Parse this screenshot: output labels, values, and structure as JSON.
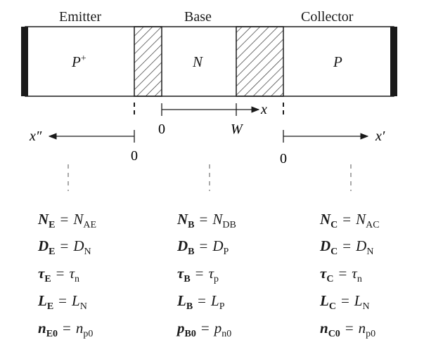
{
  "regions": {
    "emitter": {
      "title": "Emitter",
      "doping": "P",
      "doping_sup": "+"
    },
    "base": {
      "title": "Base",
      "doping": "N"
    },
    "collector": {
      "title": "Collector",
      "doping": "P"
    }
  },
  "axes": {
    "x": {
      "label": "x",
      "zero": "0",
      "end": "W"
    },
    "x_double_prime": {
      "label": "x″",
      "zero": "0"
    },
    "x_prime": {
      "label": "x′",
      "zero": "0"
    }
  },
  "equations": {
    "emitter": [
      {
        "sym": "N",
        "sub": "E",
        "val": "N",
        "vsub": "AE"
      },
      {
        "sym": "D",
        "sub": "E",
        "val": "D",
        "vsub": "N"
      },
      {
        "sym": "τ",
        "sub": "E",
        "val": "τ",
        "vsub": "n"
      },
      {
        "sym": "L",
        "sub": "E",
        "val": "L",
        "vsub": "N"
      },
      {
        "sym": "n",
        "sub": "E0",
        "val": "n",
        "vsub": "p0"
      }
    ],
    "base": [
      {
        "sym": "N",
        "sub": "B",
        "val": "N",
        "vsub": "DB"
      },
      {
        "sym": "D",
        "sub": "B",
        "val": "D",
        "vsub": "P"
      },
      {
        "sym": "τ",
        "sub": "B",
        "val": "τ",
        "vsub": "p"
      },
      {
        "sym": "L",
        "sub": "B",
        "val": "L",
        "vsub": "P"
      },
      {
        "sym": "p",
        "sub": "B0",
        "val": "p",
        "vsub": "n0"
      }
    ],
    "collector": [
      {
        "sym": "N",
        "sub": "C",
        "val": "N",
        "vsub": "AC"
      },
      {
        "sym": "D",
        "sub": "C",
        "val": "D",
        "vsub": "N"
      },
      {
        "sym": "τ",
        "sub": "C",
        "val": "τ",
        "vsub": "n"
      },
      {
        "sym": "L",
        "sub": "C",
        "val": "L",
        "vsub": "N"
      },
      {
        "sym": "n",
        "sub": "C0",
        "val": "n",
        "vsub": "p0"
      }
    ],
    "operator": "="
  }
}
